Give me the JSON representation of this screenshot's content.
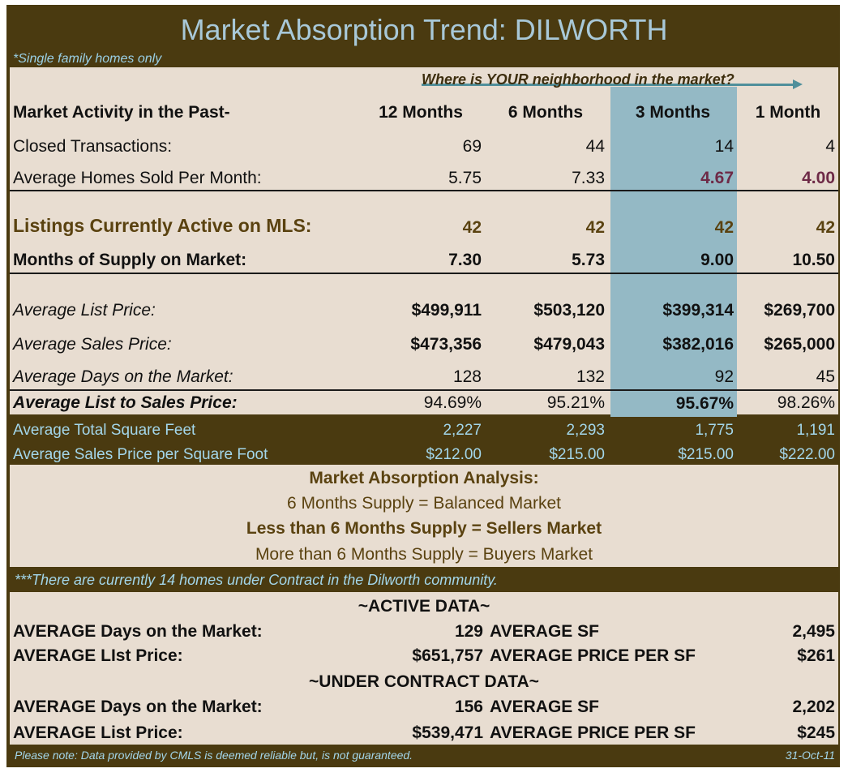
{
  "title": "Market Absorption Trend:  DILWORTH",
  "note_single": "*Single family homes only",
  "arrow_caption": "Where is YOUR neighborhood in the market?",
  "header": {
    "label": "Market Activity in the Past-",
    "periods": [
      "12 Months",
      "6 Months",
      "3 Months",
      "1 Month"
    ]
  },
  "rows": {
    "closed": {
      "label": "Closed Transactions:",
      "values": [
        "69",
        "44",
        "14",
        "4"
      ]
    },
    "avg_sold": {
      "label": "Average Homes Sold Per Month:",
      "values": [
        "5.75",
        "7.33",
        "4.67",
        "4.00"
      ]
    },
    "listings": {
      "label": "Listings Currently Active on MLS:",
      "values": [
        "42",
        "42",
        "42",
        "42"
      ]
    },
    "supply": {
      "label": "Months of Supply on Market:",
      "values": [
        "7.30",
        "5.73",
        "9.00",
        "10.50"
      ]
    },
    "list_price": {
      "label": "Average List Price:",
      "values": [
        "$499,911",
        "$503,120",
        "$399,314",
        "$269,700"
      ]
    },
    "sales_price": {
      "label": "Average Sales Price:",
      "values": [
        "$473,356",
        "$479,043",
        "$382,016",
        "$265,000"
      ]
    },
    "days": {
      "label": "Average Days on the Market:",
      "values": [
        "128",
        "132",
        "92",
        "45"
      ]
    },
    "ratio": {
      "label": "Average List to Sales Price:",
      "values": [
        "94.69%",
        "95.21%",
        "95.67%",
        "98.26%"
      ]
    },
    "sqft": {
      "label": "Average Total Square Feet",
      "values": [
        "2,227",
        "2,293",
        "1,775",
        "1,191"
      ]
    },
    "ppsf": {
      "label": "Average Sales Price per Square Foot",
      "values": [
        "$212.00",
        "$215.00",
        "$215.00",
        "$222.00"
      ]
    }
  },
  "analysis": {
    "title": "Market Absorption Analysis:",
    "line1": "6 Months Supply = Balanced Market",
    "line2": "Less than 6 Months Supply = Sellers Market",
    "line3": "More than 6 Months Supply = Buyers Market"
  },
  "contract_note": "***There are currently 14 homes under Contract in the Dilworth community.",
  "active": {
    "heading": "~ACTIVE DATA~",
    "days_label": "AVERAGE Days on the Market:",
    "days_value": "129",
    "sf_label": "AVERAGE SF",
    "sf_value": "2,495",
    "price_label": "AVERAGE LIst Price:",
    "price_value": "$651,757",
    "ppsf_label": "AVERAGE PRICE PER SF",
    "ppsf_value": "$261"
  },
  "contract": {
    "heading": "~UNDER CONTRACT DATA~",
    "days_label": "AVERAGE Days on the Market:",
    "days_value": "156",
    "sf_label": "AVERAGE SF",
    "sf_value": "2,202",
    "price_label": "AVERAGE List Price:",
    "price_value": "$539,471",
    "ppsf_label": "AVERAGE PRICE PER SF",
    "ppsf_value": "$245"
  },
  "footer": {
    "disclaimer": "Please note:  Data provided by CMLS is deemed reliable but, is not guaranteed.",
    "date": "31-Oct-11"
  }
}
